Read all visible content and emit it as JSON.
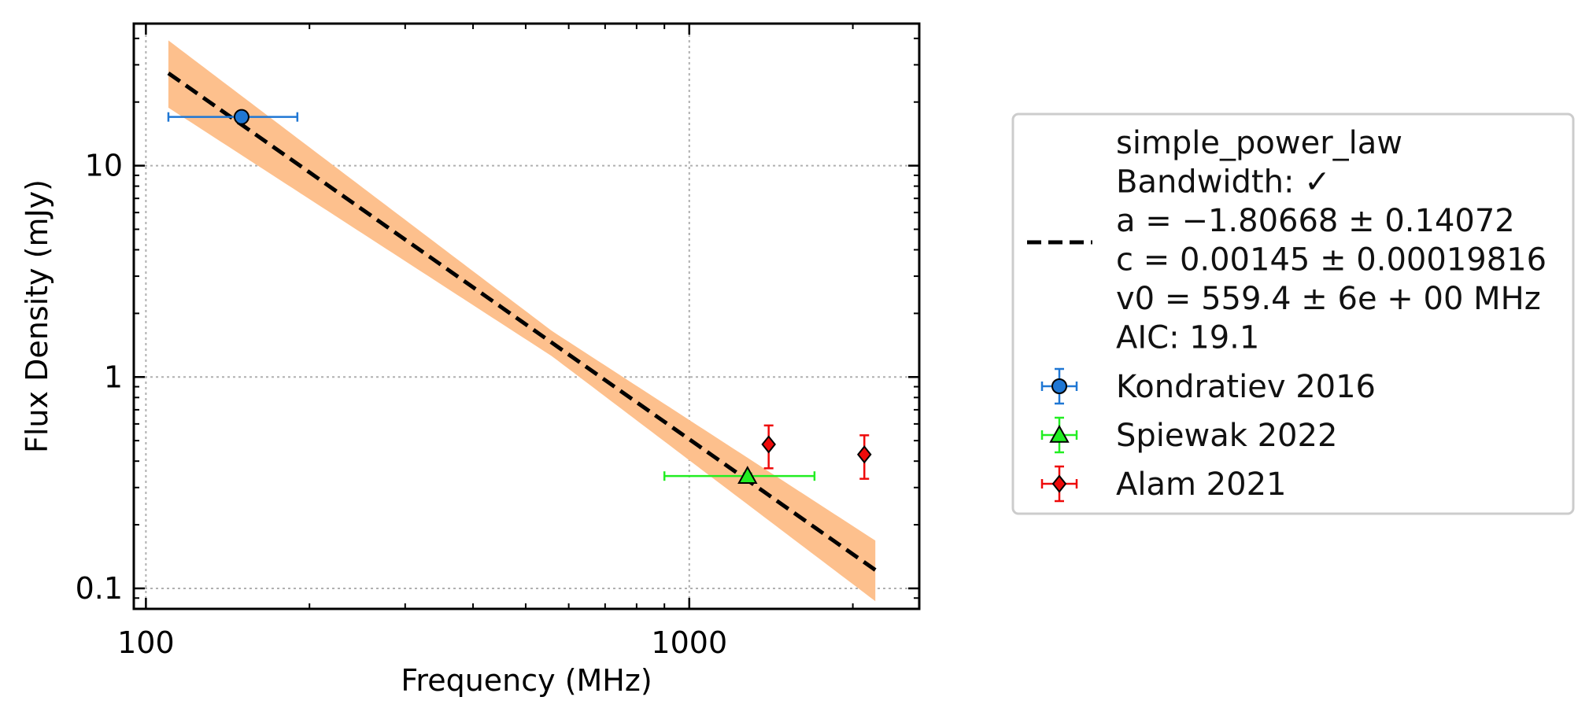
{
  "chart_data": {
    "type": "scatter",
    "title": "",
    "xlabel": "Frequency (MHz)",
    "ylabel": "Flux Density (mJy)",
    "xscale": "log",
    "yscale": "log",
    "xlim": [
      95,
      2650
    ],
    "ylim": [
      0.08,
      47
    ],
    "x_ticks": [
      100,
      1000
    ],
    "x_tick_labels": [
      "100",
      "1000"
    ],
    "y_ticks": [
      0.1,
      1,
      10
    ],
    "y_tick_labels": [
      "0.1",
      "1",
      "10"
    ],
    "grid": true,
    "legend_position": "outside-right",
    "fit": {
      "name_lines": [
        "simple_power_law",
        "Bandwidth: ✓",
        "a = −1.80668 ± 0.14072",
        "c = 0.00145 ± 0.00019816",
        "v0 = 559.4 ± 6e + 00 MHz",
        "AIC: 19.1"
      ],
      "a": -1.80668,
      "a_err": 0.14072,
      "c": 0.00145,
      "c_err": 0.00019816,
      "v0": 559.4,
      "x_range": [
        110,
        2200
      ],
      "line_color": "#000000",
      "band_color": "#fdc08d"
    },
    "series": [
      {
        "name": "Kondratiev 2016",
        "marker": "circle",
        "color": "#1f77d4",
        "points": [
          {
            "x": 150,
            "y": 17.0,
            "xerr": [
              110,
              190
            ],
            "yerr": [
              16.3,
              17.8
            ]
          }
        ]
      },
      {
        "name": "Spiewak 2022",
        "marker": "triangle",
        "color": "#22ee22",
        "points": [
          {
            "x": 1280,
            "y": 0.34,
            "xerr": [
              900,
              1700
            ],
            "yerr": [
              0.33,
              0.35
            ]
          }
        ]
      },
      {
        "name": "Alam 2021",
        "marker": "diamond",
        "color": "#ee0a0a",
        "points": [
          {
            "x": 1400,
            "y": 0.48,
            "xerr": [
              1400,
              1400
            ],
            "yerr": [
              0.37,
              0.59
            ]
          },
          {
            "x": 2100,
            "y": 0.43,
            "xerr": [
              2100,
              2100
            ],
            "yerr": [
              0.33,
              0.53
            ]
          }
        ]
      }
    ]
  }
}
